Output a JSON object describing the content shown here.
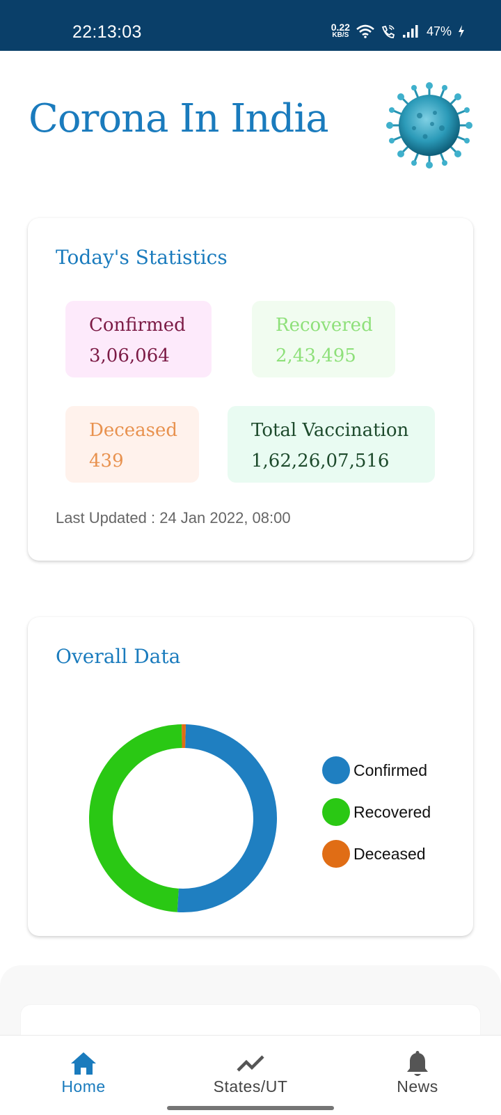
{
  "status_bar": {
    "time": "22:13:03",
    "net_speed_value": "0.22",
    "net_speed_unit": "KB/S",
    "battery": "47%"
  },
  "header": {
    "title": "Corona In India",
    "logo_icon": "coronavirus-icon"
  },
  "today": {
    "title": "Today's Statistics",
    "confirmed": {
      "label": "Confirmed",
      "value": "3,06,064",
      "color": "#7b1a45",
      "bg": "#fdeafb"
    },
    "recovered": {
      "label": "Recovered",
      "value": "2,43,495",
      "color": "#8ee07a",
      "bg": "#f1fcf0"
    },
    "deceased": {
      "label": "Deceased",
      "value": "439",
      "color": "#e8924f",
      "bg": "#fff2ec"
    },
    "vaccination": {
      "label": "Total Vaccination",
      "value": "1,62,26,07,516",
      "color": "#1d4a2c",
      "bg": "#e9fbf2"
    },
    "last_updated": "Last Updated : 24 Jan 2022, 08:00"
  },
  "overall": {
    "title": "Overall Data"
  },
  "chart_data": {
    "type": "pie",
    "style": "donut",
    "categories": [
      "Confirmed",
      "Recovered",
      "Deceased"
    ],
    "values": [
      0.505,
      0.488,
      0.007
    ],
    "colors": [
      "#1f7fc1",
      "#2ac814",
      "#e06d15"
    ],
    "legend": "right"
  },
  "nav": {
    "tabs": [
      {
        "label": "Home",
        "icon": "home-icon",
        "active": true
      },
      {
        "label": "States/UT",
        "icon": "trending-icon",
        "active": false
      },
      {
        "label": "News",
        "icon": "bell-icon",
        "active": false
      }
    ]
  }
}
